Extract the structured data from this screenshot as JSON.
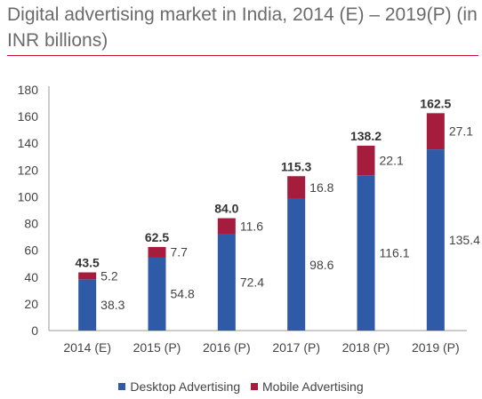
{
  "title": "Digital advertising market in India, 2014 (E) – 2019(P) (in INR billions)",
  "colors": {
    "desktop": "#2e5aa8",
    "mobile": "#a51c3c",
    "rule": "#c8102e",
    "axis": "#999999"
  },
  "chart_data": {
    "type": "bar",
    "stacked": true,
    "title": "Digital advertising market in India, 2014 (E) – 2019(P) (in INR billions)",
    "categories": [
      "2014 (E)",
      "2015 (P)",
      "2016 (P)",
      "2017 (P)",
      "2018 (P)",
      "2019  (P)"
    ],
    "series": [
      {
        "name": "Desktop Advertising",
        "values": [
          38.3,
          54.8,
          72.4,
          98.6,
          116.1,
          135.4
        ],
        "color": "#2e5aa8"
      },
      {
        "name": "Mobile Advertising",
        "values": [
          5.2,
          7.7,
          11.6,
          16.8,
          22.1,
          27.1
        ],
        "color": "#a51c3c"
      }
    ],
    "totals": [
      "43.5",
      "62.5",
      "84.0",
      "115.3",
      "138.2",
      "162.5"
    ],
    "segment_labels": {
      "desktop": [
        "38.3",
        "54.8",
        "72.4",
        "98.6",
        "116.1",
        "135.4"
      ],
      "mobile": [
        "5.2",
        "7.7",
        "11.6",
        "16.8",
        "22.1",
        "27.1"
      ]
    },
    "yticks": [
      "0",
      "20",
      "40",
      "60",
      "80",
      "100",
      "120",
      "140",
      "160",
      "180"
    ],
    "ylim": [
      0,
      180
    ],
    "grid": false,
    "legend_position": "bottom"
  }
}
